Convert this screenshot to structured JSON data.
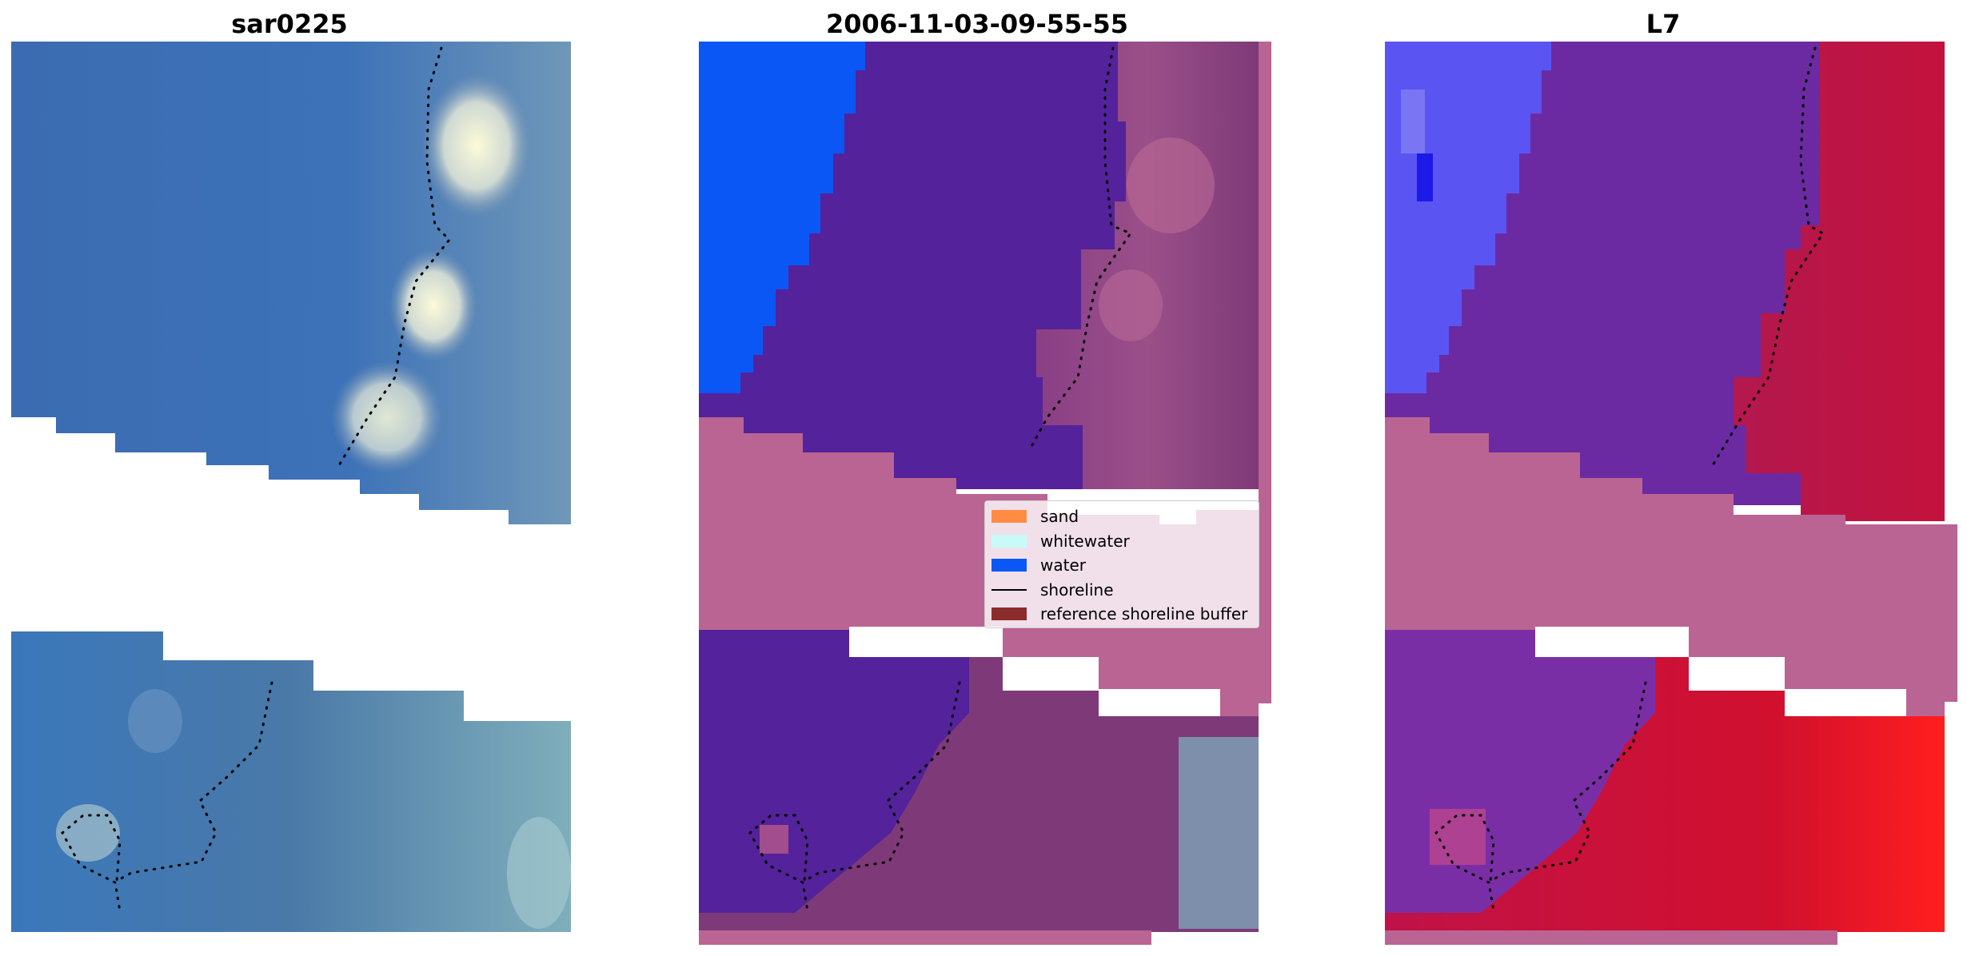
{
  "titles": {
    "left": "sar0225",
    "middle": "2006-11-03-09-55-55",
    "right": "L7"
  },
  "legend": {
    "items": [
      {
        "label": "sand",
        "kind": "patch",
        "color": "#ff8c42"
      },
      {
        "label": "whitewater",
        "kind": "patch",
        "color": "#c8fbf7"
      },
      {
        "label": "water",
        "kind": "patch",
        "color": "#0b57f5"
      },
      {
        "label": "shoreline",
        "kind": "line",
        "color": "#000000"
      },
      {
        "label": "reference shoreline buffer",
        "kind": "patch",
        "color": "#8b2b2b"
      }
    ]
  },
  "colors": {
    "sea_rgb": "#3f72b4",
    "foam": "#e4ecd8",
    "classified_water": "#0b57f5",
    "classified_dark_water": "#54229a",
    "land_class": "#7e3a78",
    "buffer_band": "#ba6494",
    "index_red": "#c31442",
    "index_purple": "#6b2aa2",
    "index_blue": "#5a55f2"
  }
}
